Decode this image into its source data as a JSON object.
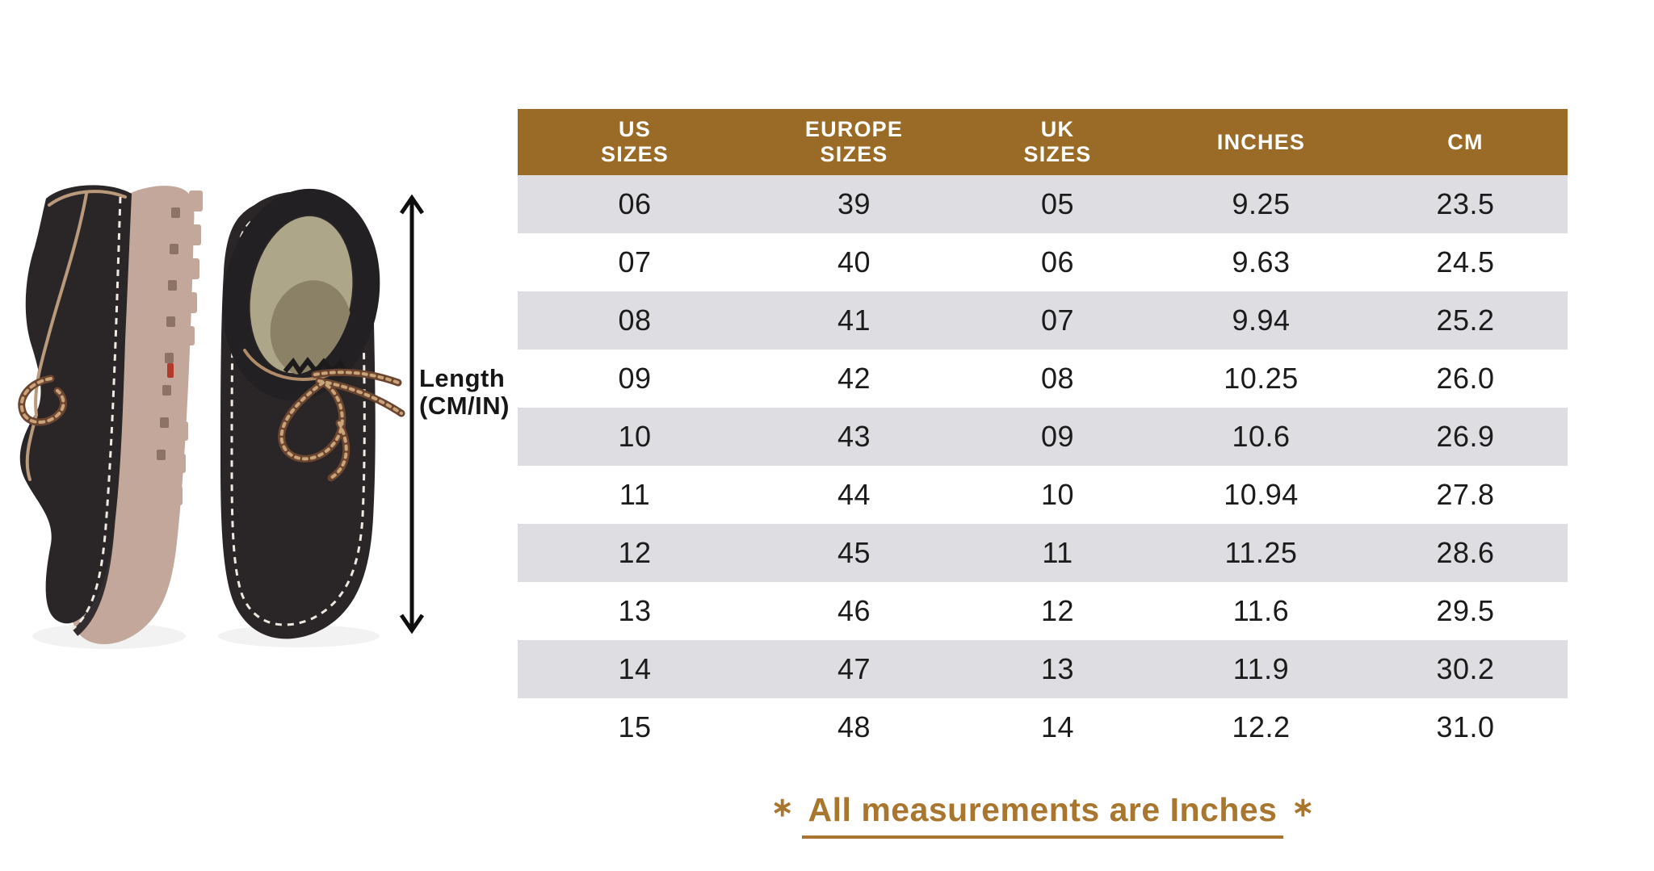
{
  "colors": {
    "header_bg": "#9A6B26",
    "header_text": "#FFFFFF",
    "row_alt": "#DEDDE1",
    "cell_text": "#1B1B1B",
    "footer_text": "#A8762E",
    "label_text": "#161616",
    "arrow": "#0E0E0E",
    "shoe_upper": "#2A2527",
    "shoe_sole": "#C2A79A",
    "shoe_interior": "#ADA689",
    "lace": "#6B4530",
    "stitch": "#EEEAE2"
  },
  "measurement": {
    "line1": "Length",
    "line2": "(CM/IN)"
  },
  "chart_data": {
    "type": "table",
    "columns": [
      "US\nSIZES",
      "EUROPE\nSIZES",
      "UK\nSIZES",
      "INCHES",
      "CM"
    ],
    "rows": [
      [
        "06",
        "39",
        "05",
        "9.25",
        "23.5"
      ],
      [
        "07",
        "40",
        "06",
        "9.63",
        "24.5"
      ],
      [
        "08",
        "41",
        "07",
        "9.94",
        "25.2"
      ],
      [
        "09",
        "42",
        "08",
        "10.25",
        "26.0"
      ],
      [
        "10",
        "43",
        "09",
        "10.6",
        "26.9"
      ],
      [
        "11",
        "44",
        "10",
        "10.94",
        "27.8"
      ],
      [
        "12",
        "45",
        "11",
        "11.25",
        "28.6"
      ],
      [
        "13",
        "46",
        "12",
        "11.6",
        "29.5"
      ],
      [
        "14",
        "47",
        "13",
        "11.9",
        "30.2"
      ],
      [
        "15",
        "48",
        "14",
        "12.2",
        "31.0"
      ]
    ]
  },
  "footer": {
    "asterisk": "∗",
    "text": "All measurements are Inches"
  }
}
